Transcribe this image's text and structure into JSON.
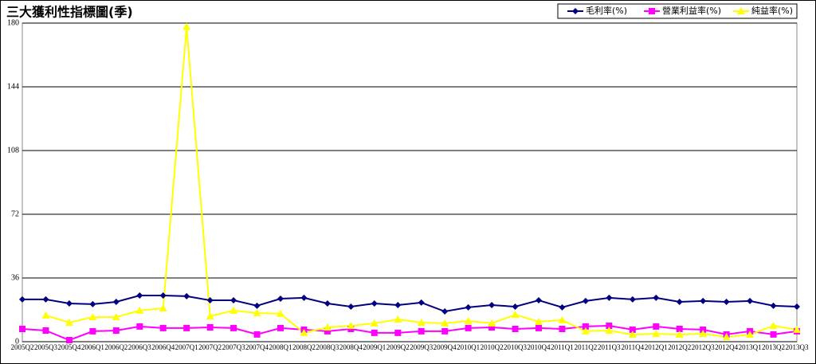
{
  "chart_data": {
    "type": "line",
    "title": "三大獲利性指標圖(季)",
    "categories": [
      "2005Q2",
      "2005Q3",
      "2005Q4",
      "2006Q1",
      "2006Q2",
      "2006Q3",
      "2006Q4",
      "2007Q1",
      "2007Q2",
      "2007Q3",
      "2007Q4",
      "2008Q1",
      "2008Q2",
      "2008Q3",
      "2008Q4",
      "2009Q1",
      "2009Q2",
      "2009Q3",
      "2009Q4",
      "2010Q1",
      "2010Q2",
      "2010Q3",
      "2010Q4",
      "2011Q1",
      "2011Q2",
      "2011Q3",
      "2011Q4",
      "2012Q1",
      "2012Q2",
      "2012Q3",
      "2012Q4",
      "2013Q1",
      "2013Q2",
      "2013Q3"
    ],
    "series": [
      {
        "name": "毛利率(%)",
        "color": "#000080",
        "marker": "diamond",
        "values": [
          23.9,
          23.9,
          21.6,
          21.2,
          22.5,
          26.1,
          26.1,
          25.7,
          23.4,
          23.4,
          20.3,
          24.3,
          24.8,
          21.6,
          19.8,
          21.6,
          20.7,
          22.1,
          17.1,
          19.4,
          20.7,
          19.8,
          23.4,
          19.4,
          23,
          24.8,
          23.9,
          24.8,
          22.5,
          23,
          22.5,
          23,
          20.3,
          19.8
        ]
      },
      {
        "name": "營業利益率(%)",
        "color": "#ff00ff",
        "marker": "square",
        "values": [
          7.2,
          6.3,
          0.9,
          5.9,
          6.3,
          8.6,
          7.7,
          7.7,
          8.1,
          7.7,
          4.1,
          7.7,
          6.8,
          5.9,
          7.2,
          5,
          5,
          5.9,
          5.9,
          7.7,
          8.1,
          7.2,
          7.7,
          7.2,
          8.6,
          9,
          6.8,
          8.6,
          7.2,
          6.8,
          4.1,
          5.9,
          4.1,
          5.9
        ]
      },
      {
        "name": "純益率(%)",
        "color": "#ffff00",
        "marker": "triangle",
        "values": [
          null,
          14.9,
          10.8,
          13.9,
          13.9,
          17.6,
          18.9,
          178,
          14.4,
          17.6,
          16.2,
          15.8,
          5,
          8.1,
          9,
          10.4,
          12.6,
          10.8,
          10.4,
          11.7,
          10.4,
          15.3,
          11.3,
          12.2,
          5.9,
          6.3,
          4,
          4.5,
          4,
          4.5,
          2.7,
          4,
          9,
          6.8
        ]
      }
    ],
    "ylim": [
      0,
      180
    ],
    "yticks": [
      0,
      36,
      72,
      108,
      144,
      180
    ],
    "grid": true,
    "legend": "top-right"
  }
}
